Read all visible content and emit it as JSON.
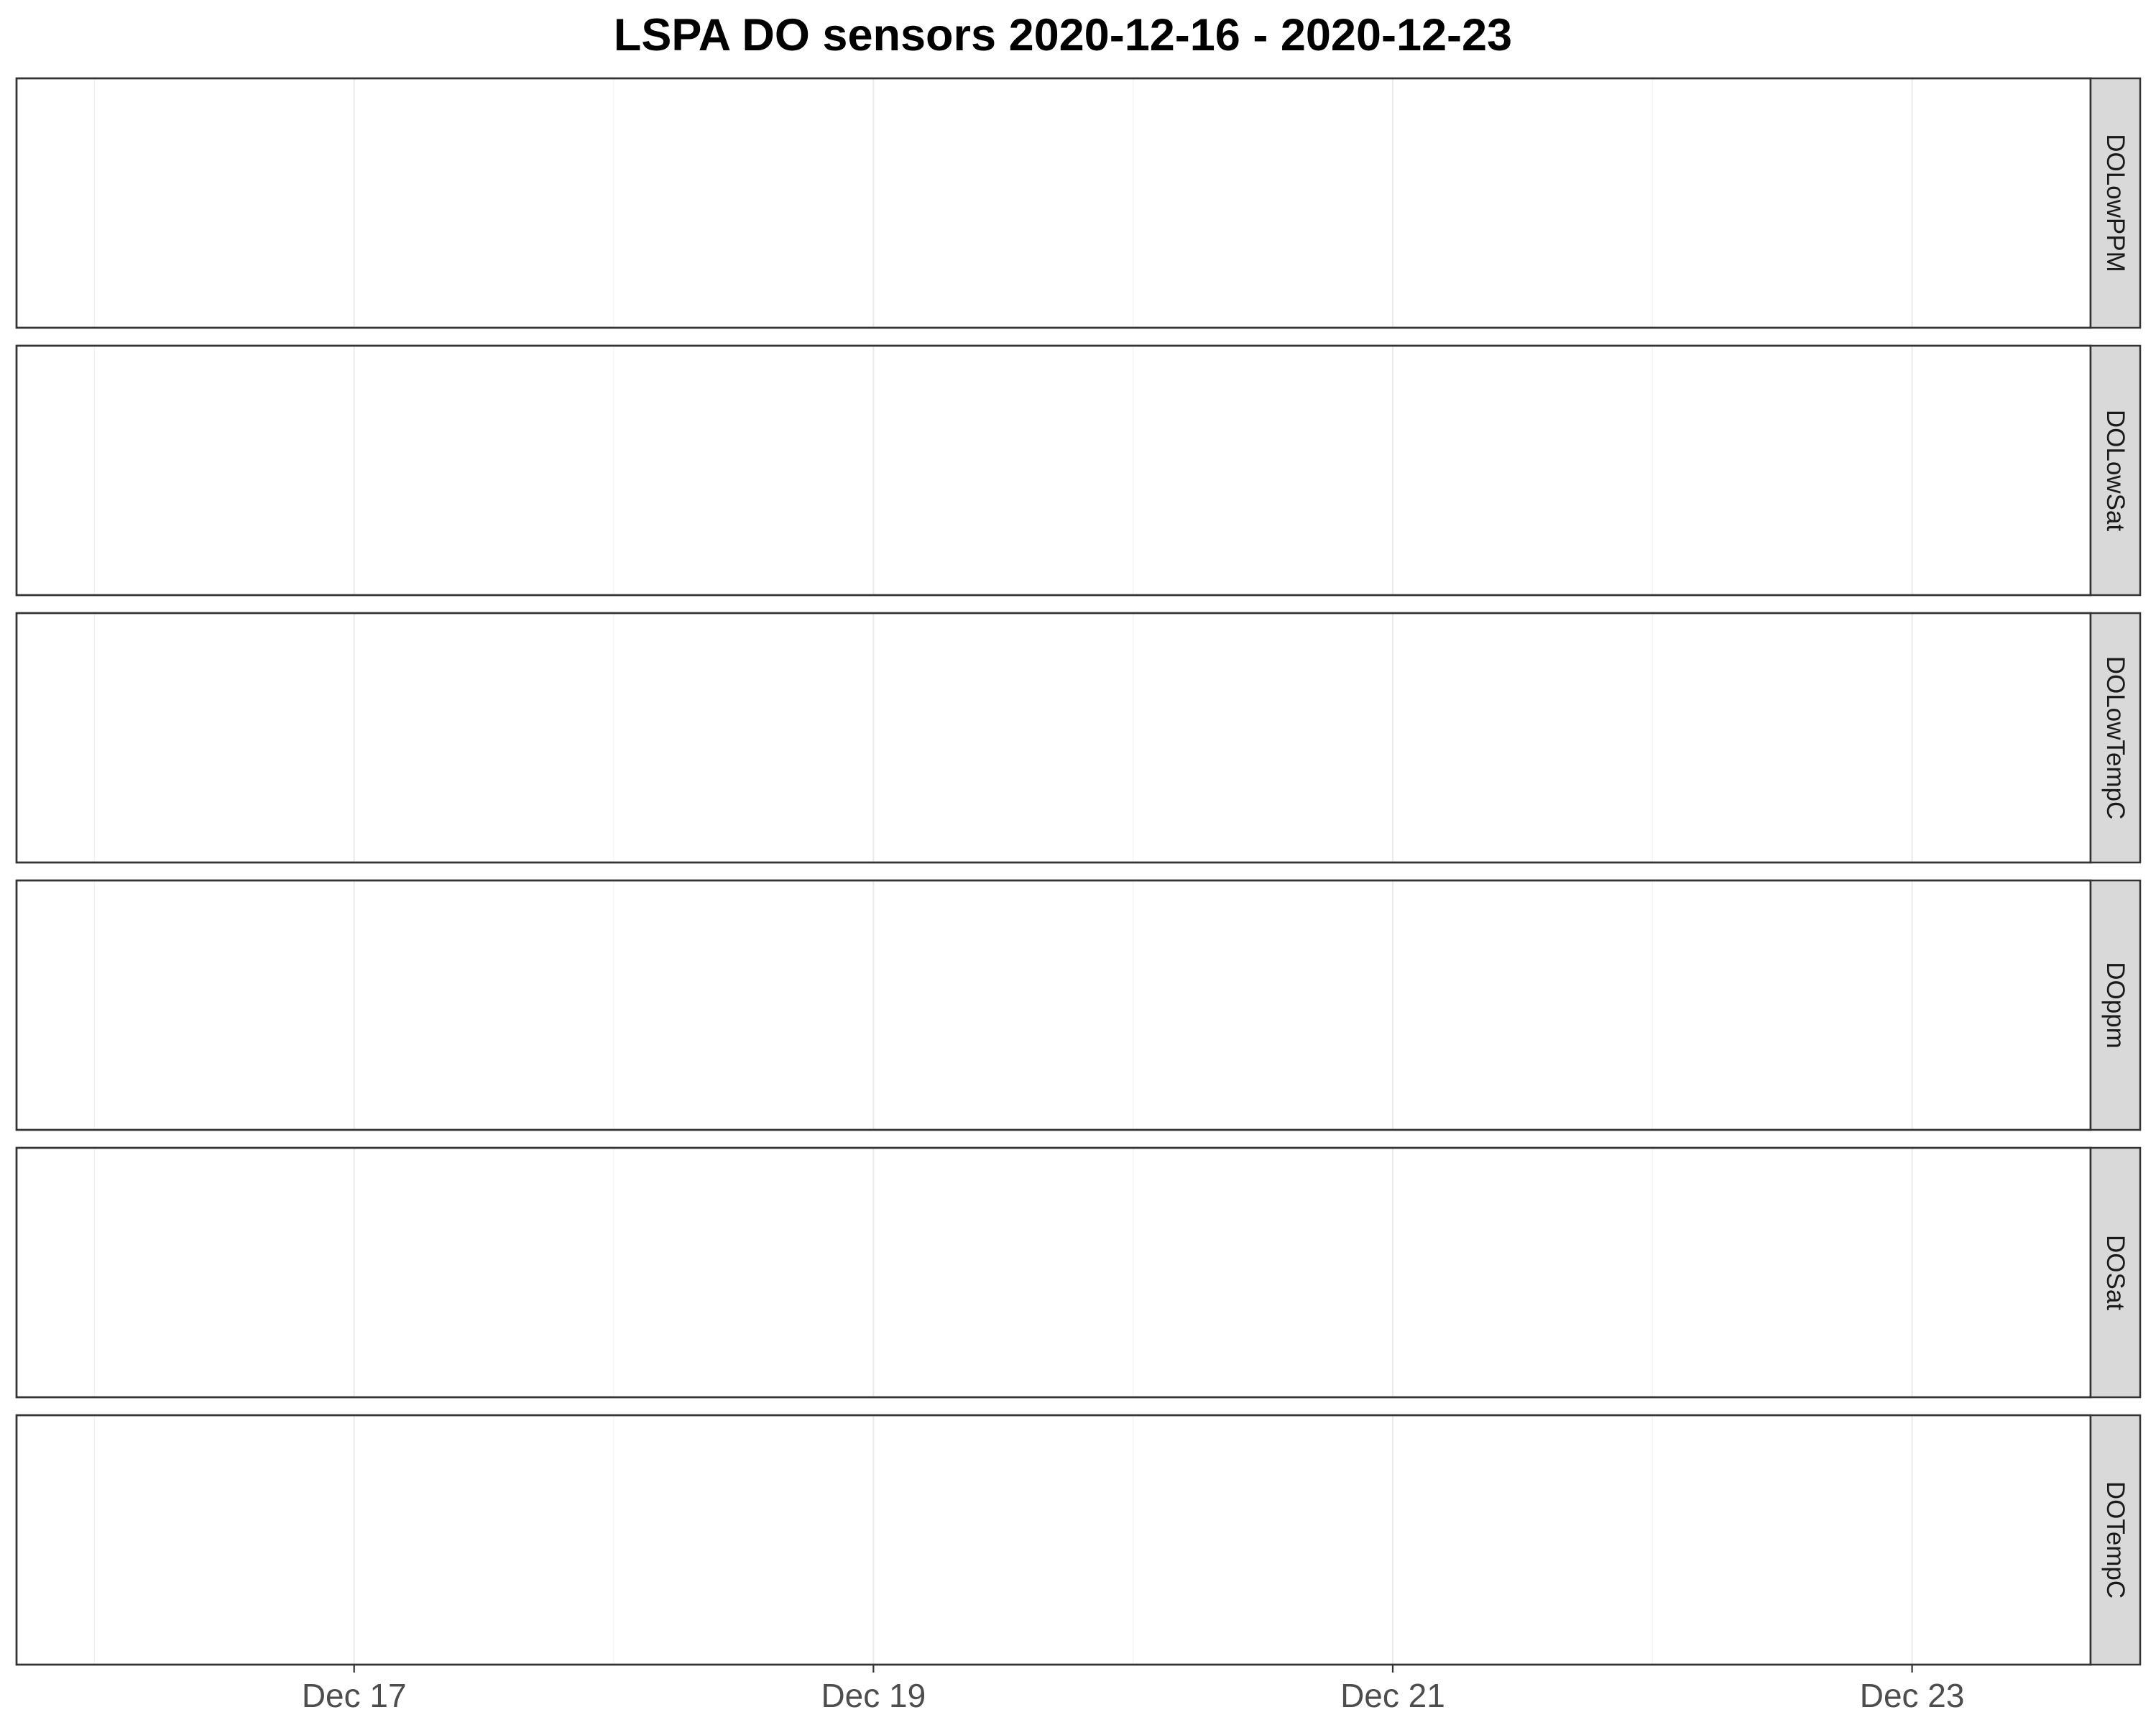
{
  "chart_data": {
    "type": "line",
    "title": "LSPA DO sensors 2020-12-16 - 2020-12-23",
    "xlabel": "",
    "ylabel": "",
    "x_range": [
      "2020-12-15T16:48",
      "2020-12-23T16:30"
    ],
    "x_major_ticks": [
      {
        "date": "2020-12-17",
        "label": "Dec 17"
      },
      {
        "date": "2020-12-19",
        "label": "Dec 19"
      },
      {
        "date": "2020-12-21",
        "label": "Dec 21"
      },
      {
        "date": "2020-12-23",
        "label": "Dec 23"
      }
    ],
    "x_minor_ticks": [
      "2020-12-16",
      "2020-12-18",
      "2020-12-20",
      "2020-12-22"
    ],
    "facets": [
      {
        "label": "DOLowPPM",
        "series": []
      },
      {
        "label": "DOLowSat",
        "series": []
      },
      {
        "label": "DOLowTempC",
        "series": []
      },
      {
        "label": "DOppm",
        "series": []
      },
      {
        "label": "DOSat",
        "series": []
      },
      {
        "label": "DOTempC",
        "series": []
      }
    ],
    "grid": true,
    "strip_position": "right"
  },
  "colors": {
    "strip_fill": "#d9d9d9",
    "panel_border": "#333333",
    "gridline": "#ebebeb"
  }
}
